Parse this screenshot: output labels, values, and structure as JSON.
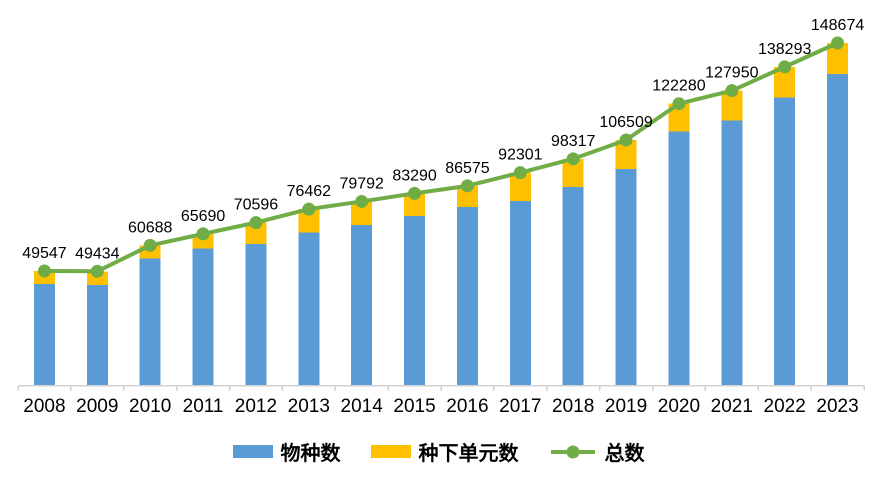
{
  "chart_data": {
    "type": "bar",
    "subtype": "stacked-bars-with-total-line",
    "title": "",
    "xlabel": "",
    "ylabel": "",
    "categories": [
      "2008",
      "2009",
      "2010",
      "2011",
      "2012",
      "2013",
      "2014",
      "2015",
      "2016",
      "2017",
      "2018",
      "2019",
      "2020",
      "2021",
      "2022",
      "2023"
    ],
    "series": [
      {
        "name": "物种数",
        "type": "bar",
        "stacked": true,
        "color": "#5B9BD5",
        "values": [
          43900,
          43400,
          55100,
          59400,
          61200,
          66400,
          69500,
          73400,
          77300,
          79900,
          86000,
          94000,
          110200,
          115000,
          125000,
          135100
        ]
      },
      {
        "name": "种下单元数",
        "type": "bar",
        "stacked": true,
        "color": "#FFC000",
        "values": [
          5647,
          6034,
          5588,
          6290,
          9396,
          10062,
          10292,
          9890,
          9275,
          12401,
          12317,
          12509,
          12080,
          12950,
          13293,
          13574
        ]
      },
      {
        "name": "总数",
        "type": "line",
        "marker": "circle",
        "color": "#70AD47",
        "values": [
          49547,
          49434,
          60688,
          65690,
          70596,
          76462,
          79792,
          83290,
          86575,
          92301,
          98317,
          106509,
          122280,
          127950,
          138293,
          148674
        ],
        "data_labels_visible": true
      }
    ],
    "ylim": [
      0,
      155000
    ],
    "value_axis_visible": false,
    "grid": false,
    "legend_position": "bottom",
    "style": {
      "background": "#FFFFFF",
      "axis_color": "#D2D2D2",
      "text_color": "#000000"
    }
  }
}
